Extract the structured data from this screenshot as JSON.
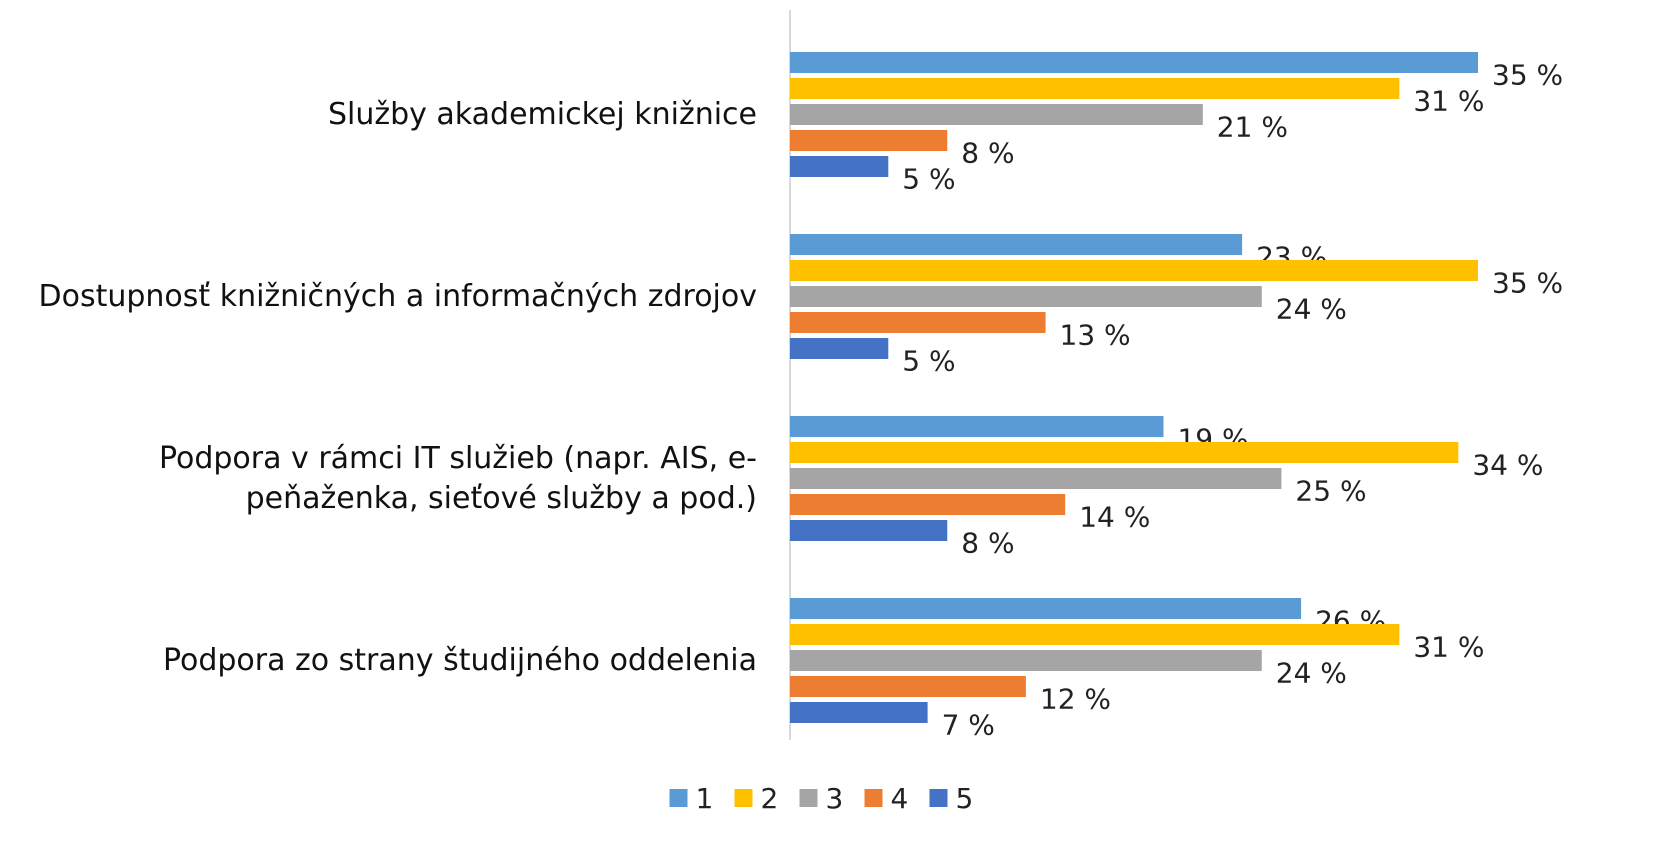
{
  "chart_data": {
    "type": "bar",
    "orientation": "horizontal",
    "categories": [
      "Služby akademickej knižnice",
      "Dostupnosť knižničných a informačných zdrojov",
      "Podpora v rámci IT služieb (napr. AIS, e-peňaženka, sieťové služby a pod.)",
      "Podpora zo strany študijného oddelenia"
    ],
    "series": [
      {
        "name": "1",
        "color": "#5b9bd5",
        "values": [
          35,
          23,
          19,
          26
        ],
        "value_labels": [
          "35 %",
          "23 %",
          "19 %",
          "26 %"
        ]
      },
      {
        "name": "2",
        "color": "#ffc000",
        "values": [
          31,
          35,
          34,
          31
        ],
        "value_labels": [
          "31 %",
          "35 %",
          "34 %",
          "31 %"
        ]
      },
      {
        "name": "3",
        "color": "#a5a5a5",
        "values": [
          21,
          24,
          25,
          24
        ],
        "value_labels": [
          "21 %",
          "24 %",
          "25 %",
          "24 %"
        ]
      },
      {
        "name": "4",
        "color": "#ed7d31",
        "values": [
          8,
          13,
          14,
          12
        ],
        "value_labels": [
          "8 %",
          "13 %",
          "14 %",
          "12 %"
        ]
      },
      {
        "name": "5",
        "color": "#4472c4",
        "values": [
          5,
          5,
          8,
          7
        ],
        "value_labels": [
          "5 %",
          "5 %",
          "8 %",
          "7 %"
        ]
      }
    ],
    "xlim": [
      0,
      35
    ],
    "legend": "bottom"
  }
}
